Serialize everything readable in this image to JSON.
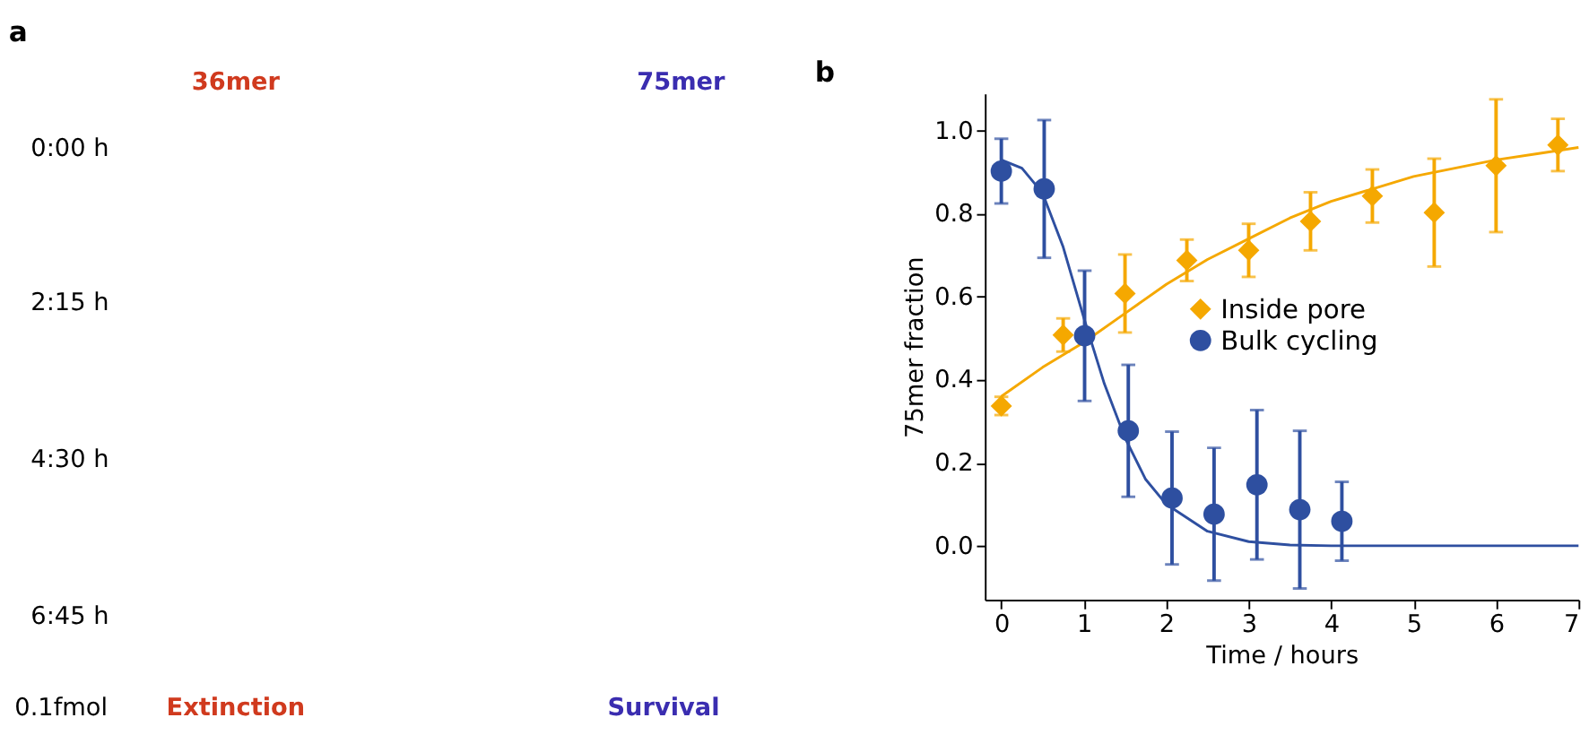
{
  "chart_data": [
    {
      "type": "other",
      "title": "a",
      "annotations": [
        "36mer",
        "75mer",
        "0:00 h",
        "2:15 h",
        "4:30 h",
        "6:45 h",
        "0.1fmol",
        "Extinction",
        "Survival"
      ]
    },
    {
      "type": "scatter",
      "title": "b",
      "xlabel": "Time / hours",
      "ylabel": "75mer fraction",
      "xlim": [
        -0.2,
        7.0
      ],
      "ylim": [
        -0.13,
        1.09
      ],
      "xticks": [
        0,
        1,
        2,
        3,
        4,
        5,
        6,
        7
      ],
      "yticks": [
        {
          "value": 0,
          "label": "0.0"
        },
        0.2,
        0.4,
        0.6,
        0.8,
        {
          "value": 1,
          "label": "1.0"
        }
      ],
      "grid": false,
      "legend": "right",
      "series": [
        {
          "name": "Inside pore",
          "color": "#f5a800",
          "marker": "diamond",
          "x": [
            0,
            0.75,
            1.5,
            2.25,
            3.0,
            3.75,
            4.5,
            5.25,
            6.0,
            6.75
          ],
          "values": [
            0.337,
            0.508,
            0.608,
            0.688,
            0.712,
            0.782,
            0.843,
            0.803,
            0.916,
            0.966
          ],
          "errors": [
            0.022,
            0.04,
            0.094,
            0.05,
            0.064,
            0.07,
            0.064,
            0.13,
            0.16,
            0.063
          ]
        },
        {
          "name": "Bulk cycling",
          "color": "#2e4fa0",
          "marker": "circle",
          "x": [
            0,
            0.52,
            1.01,
            1.54,
            2.07,
            2.58,
            3.1,
            3.62,
            4.13
          ],
          "values": [
            0.903,
            0.86,
            0.506,
            0.277,
            0.115,
            0.076,
            0.147,
            0.087,
            0.059
          ],
          "errors": [
            0.078,
            0.166,
            0.157,
            0.159,
            0.16,
            0.16,
            0.18,
            0.19,
            0.095
          ]
        },
        {
          "type": "line",
          "color": "#f5a800",
          "marker": "none",
          "x": [
            0,
            0.5,
            1,
            1.5,
            2,
            2.5,
            3,
            3.5,
            4,
            4.5,
            5,
            5.5,
            6,
            6.5,
            7
          ],
          "values": [
            0.36,
            0.43,
            0.49,
            0.56,
            0.63,
            0.69,
            0.74,
            0.79,
            0.83,
            0.86,
            0.89,
            0.91,
            0.93,
            0.945,
            0.96
          ]
        },
        {
          "type": "line",
          "color": "#2e4fa0",
          "marker": "none",
          "x": [
            0,
            0.25,
            0.5,
            0.75,
            1,
            1.25,
            1.5,
            1.75,
            2,
            2.5,
            3,
            3.5,
            4,
            5,
            7
          ],
          "values": [
            0.93,
            0.91,
            0.85,
            0.72,
            0.55,
            0.39,
            0.26,
            0.16,
            0.1,
            0.035,
            0.01,
            0.002,
            0.0,
            0.0,
            0.0
          ]
        }
      ]
    }
  ]
}
